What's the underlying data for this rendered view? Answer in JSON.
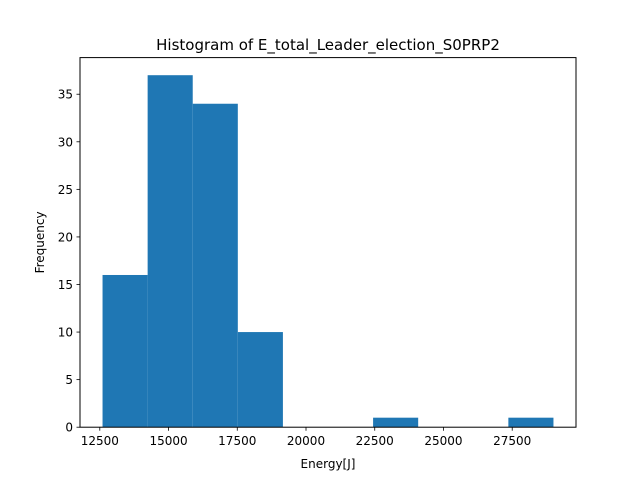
{
  "chart_data": {
    "type": "bar",
    "title": "Histogram of E_total_Leader_election_S0PRP2",
    "xlabel": "Energy[J]",
    "ylabel": "Frequency",
    "bin_edges": [
      12600,
      14240,
      15880,
      17520,
      19160,
      20800,
      22440,
      24080,
      25720,
      27360,
      29000
    ],
    "values": [
      16,
      37,
      34,
      10,
      0,
      0,
      1,
      0,
      0,
      1
    ],
    "xlim": [
      11780,
      29820
    ],
    "ylim": [
      0,
      38.85
    ],
    "xticks": [
      12500,
      15000,
      17500,
      20000,
      22500,
      25000,
      27500
    ],
    "xtick_labels": [
      "12500",
      "15000",
      "17500",
      "20000",
      "22500",
      "25000",
      "27500"
    ],
    "yticks": [
      0,
      5,
      10,
      15,
      20,
      25,
      30,
      35
    ],
    "ytick_labels": [
      "0",
      "5",
      "10",
      "15",
      "20",
      "25",
      "30",
      "35"
    ],
    "bar_color": "#1f77b4",
    "grid": false,
    "legend": false
  }
}
